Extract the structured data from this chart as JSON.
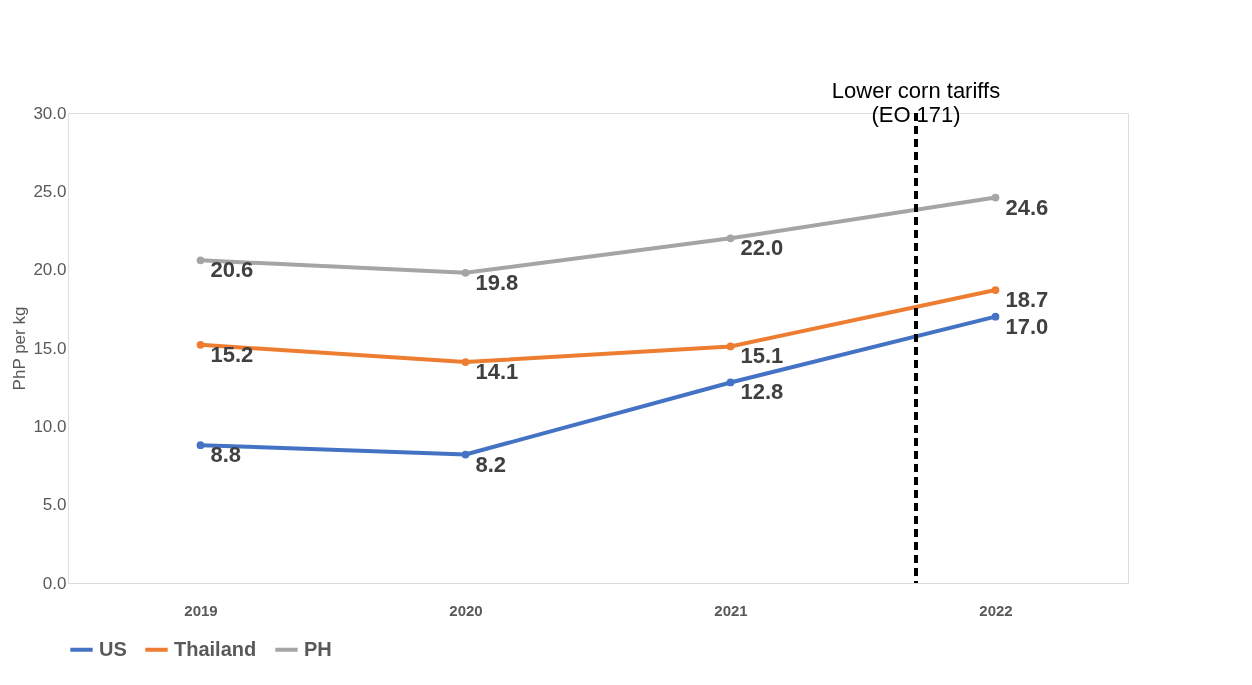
{
  "chart_data": {
    "type": "line",
    "ylabel": "PhP per kg",
    "x": [
      2019,
      2020,
      2021,
      2022
    ],
    "xlim": [
      2018.5,
      2022.5
    ],
    "xticks": [
      2019,
      2020,
      2021,
      2022
    ],
    "ylim": [
      0,
      30
    ],
    "yticks": [
      {
        "value": 0,
        "label": "0.0"
      },
      {
        "value": 5,
        "label": "5.0"
      },
      {
        "value": 10,
        "label": "10.0"
      },
      {
        "value": 15,
        "label": "15.0"
      },
      {
        "value": 20,
        "label": "20.0"
      },
      {
        "value": 25,
        "label": "25.0"
      },
      {
        "value": 30,
        "label": "30.0"
      }
    ],
    "series": [
      {
        "name": "US",
        "color": "#4472c4",
        "values": [
          8.8,
          8.2,
          12.8,
          17.0
        ],
        "value_labels": [
          "8.8",
          "8.2",
          "12.8",
          "17.0"
        ]
      },
      {
        "name": "Thailand",
        "color": "#ed7d31",
        "values": [
          15.2,
          14.1,
          15.1,
          18.7
        ],
        "value_labels": [
          "15.2",
          "14.1",
          "15.1",
          "18.7"
        ]
      },
      {
        "name": "PH",
        "color": "#a5a5a5",
        "values": [
          20.6,
          19.8,
          22.0,
          24.6
        ],
        "value_labels": [
          "20.6",
          "19.8",
          "22.0",
          "24.6"
        ]
      }
    ],
    "ref_lines": [
      {
        "axis": "x",
        "value": 2021.7,
        "label": "Lower corn tariffs\n(EO 171)",
        "color": "#000000",
        "line_style": "dashed"
      }
    ],
    "marker": "circle",
    "line_style": "solid",
    "grid": false,
    "legend": "bottom"
  }
}
